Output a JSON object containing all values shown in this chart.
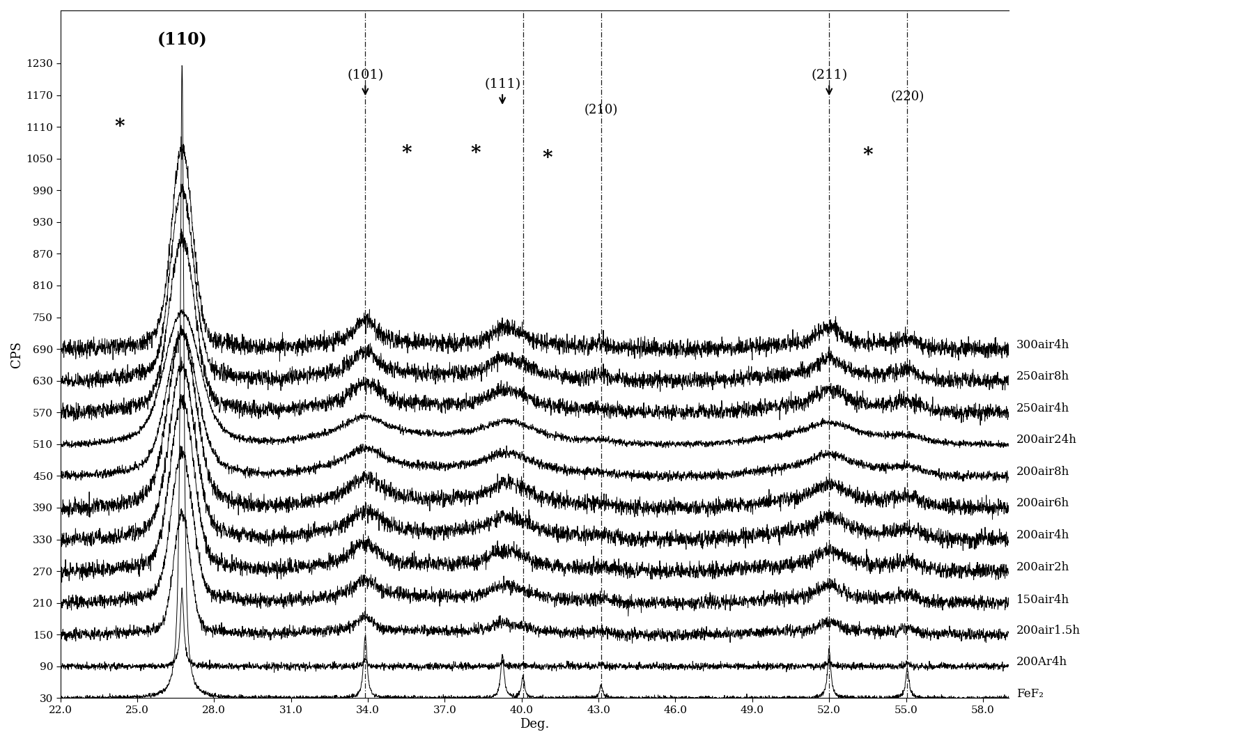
{
  "xlabel": "Deg.",
  "ylabel": "CPS",
  "xmin": 22.0,
  "xmax": 59.0,
  "ymin": 30,
  "ymax": 1280,
  "xticks": [
    22.0,
    25.0,
    28.0,
    31.0,
    34.0,
    37.0,
    40.0,
    43.0,
    46.0,
    49.0,
    52.0,
    55.0,
    58.0
  ],
  "yticks": [
    30,
    90,
    150,
    210,
    270,
    330,
    390,
    450,
    510,
    570,
    630,
    690,
    750,
    810,
    870,
    930,
    990,
    1050,
    1110,
    1170,
    1230
  ],
  "sample_labels": [
    "FeF₂",
    "200Ar4h",
    "200air1.5h",
    "150air4h",
    "200air2h",
    "200air4h",
    "200air6h",
    "200air8h",
    "200air24h",
    "250air4h",
    "250air8h",
    "300air4h"
  ],
  "offsets": [
    0,
    60,
    120,
    180,
    240,
    300,
    360,
    420,
    480,
    540,
    600,
    660
  ],
  "peak_positions_fef2": [
    26.75,
    33.9,
    39.25,
    40.05,
    43.1,
    52.0,
    55.05
  ],
  "peak_heights_fef2": [
    1200,
    120,
    80,
    40,
    25,
    90,
    55
  ],
  "peak_widths_fef2": [
    0.08,
    0.08,
    0.08,
    0.07,
    0.07,
    0.08,
    0.08
  ],
  "dashed_lines": [
    33.9,
    40.05,
    43.1,
    52.0,
    55.05
  ],
  "background_color": "#ffffff",
  "line_color": "#000000",
  "seed": 42
}
